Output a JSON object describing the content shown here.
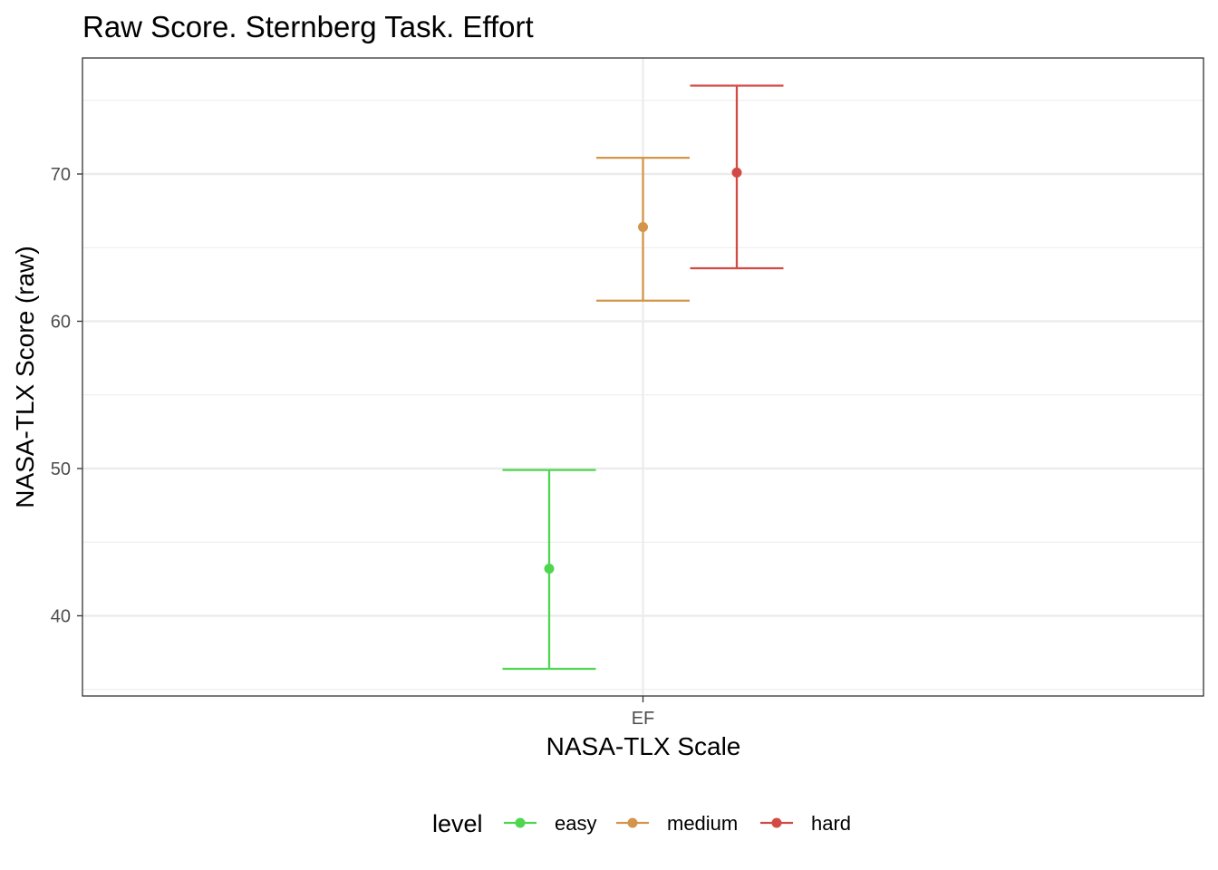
{
  "chart_data": {
    "type": "errorbar",
    "title": "Raw Score. Sternberg Task. Effort",
    "xlabel": "NASA-TLX Scale",
    "ylabel": "NASA-TLX Score (raw)",
    "categories": [
      "EF"
    ],
    "ylim": [
      34.5,
      78
    ],
    "yticks": [
      40,
      50,
      60,
      70
    ],
    "grid": true,
    "legend": {
      "title": "level",
      "position": "bottom",
      "entries": [
        "easy",
        "medium",
        "hard"
      ]
    },
    "series": [
      {
        "name": "easy",
        "color": "#4fd64f",
        "category": "EF",
        "mean": 43.2,
        "lower": 36.4,
        "upper": 49.9
      },
      {
        "name": "medium",
        "color": "#d4954a",
        "category": "EF",
        "mean": 66.4,
        "lower": 61.4,
        "upper": 71.1
      },
      {
        "name": "hard",
        "color": "#d34a45",
        "category": "EF",
        "mean": 70.1,
        "lower": 63.6,
        "upper": 76.0
      }
    ]
  }
}
